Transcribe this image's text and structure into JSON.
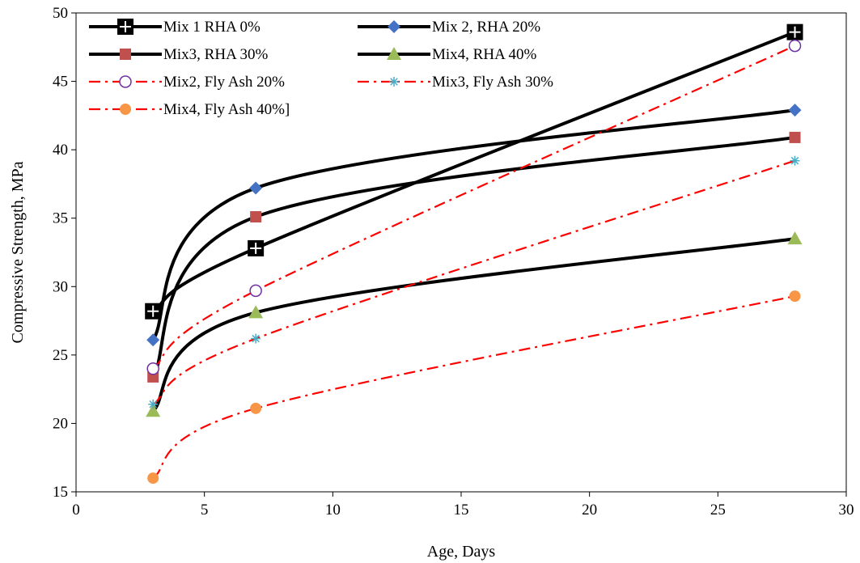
{
  "chart_data": {
    "type": "line",
    "title": "",
    "xlabel": "Age, Days",
    "ylabel": "Compressive Strength, MPa",
    "xlim": [
      0,
      30
    ],
    "ylim": [
      15,
      50
    ],
    "xticks": [
      0,
      5,
      10,
      15,
      20,
      25,
      30
    ],
    "yticks": [
      15,
      20,
      25,
      30,
      35,
      40,
      45,
      50
    ],
    "grid": false,
    "legend_position": "top-left",
    "series": [
      {
        "name": "Mix 1 RHA 0%",
        "x": [
          3,
          7,
          28
        ],
        "y": [
          28.2,
          32.8,
          48.6
        ],
        "color": "#000000",
        "line": "solid",
        "marker": "square-cross",
        "marker_color": "#000000"
      },
      {
        "name": "Mix 2, RHA 20%",
        "x": [
          3,
          7,
          28
        ],
        "y": [
          26.1,
          37.2,
          42.9
        ],
        "color": "#000000",
        "line": "solid",
        "marker": "diamond",
        "marker_color": "#4472C4"
      },
      {
        "name": "Mix3, RHA 30%",
        "x": [
          3,
          7,
          28
        ],
        "y": [
          23.4,
          35.1,
          40.9
        ],
        "color": "#000000",
        "line": "solid",
        "marker": "square",
        "marker_color": "#C0504D"
      },
      {
        "name": "Mix4, RHA 40%",
        "x": [
          3,
          7,
          28
        ],
        "y": [
          20.9,
          28.1,
          33.5
        ],
        "color": "#000000",
        "line": "solid",
        "marker": "triangle",
        "marker_color": "#9BBB59"
      },
      {
        "name": "Mix2, Fly Ash 20%",
        "x": [
          3,
          7,
          28
        ],
        "y": [
          24.0,
          29.7,
          47.6
        ],
        "color": "#FF0000",
        "line": "dashdot",
        "marker": "circle-open",
        "marker_color": "#7030A0"
      },
      {
        "name": "Mix3, Fly Ash 30%",
        "x": [
          3,
          7,
          28
        ],
        "y": [
          21.4,
          26.2,
          39.2
        ],
        "color": "#FF0000",
        "line": "dashdot",
        "marker": "asterisk",
        "marker_color": "#4BACC6"
      },
      {
        "name": "Mix4, Fly Ash 40%]",
        "x": [
          3,
          7,
          28
        ],
        "y": [
          16.0,
          21.1,
          29.3
        ],
        "color": "#FF0000",
        "line": "dashdot",
        "marker": "circle",
        "marker_color": "#F79646"
      }
    ]
  }
}
